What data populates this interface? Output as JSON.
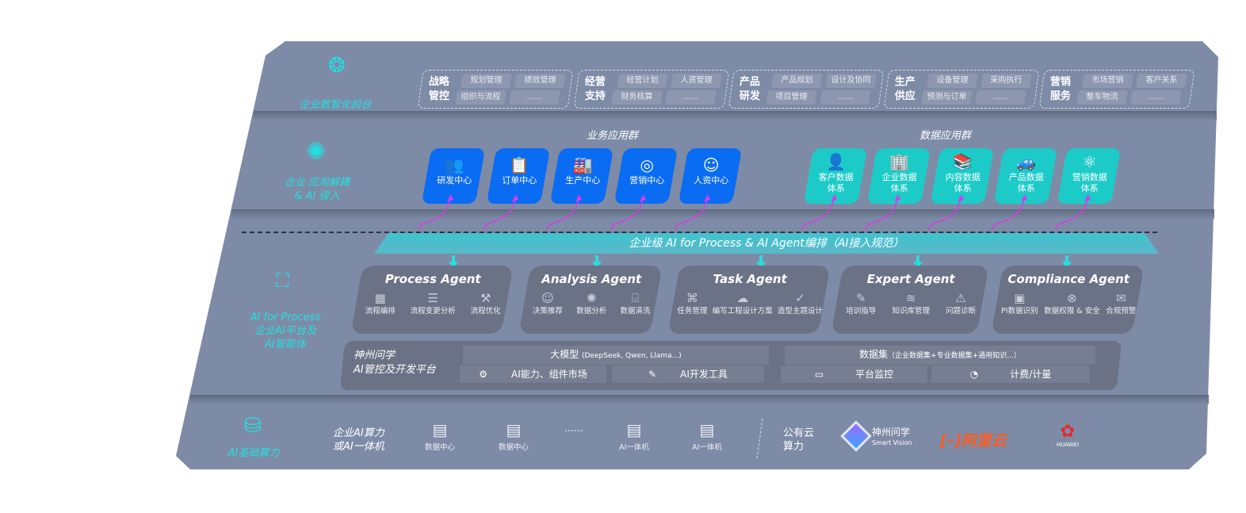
{
  "layers": {
    "front": {
      "label": "企业数智化前台",
      "icon": "brain-icon"
    },
    "apps": {
      "label_line1": "企业 应用解耦",
      "label_line2": "& AI 侵入",
      "icon": "molecule-icon"
    },
    "ai": {
      "label_line1": "AI for Process",
      "label_line2": "企业AI平台及",
      "label_line3": "AI智能体",
      "icon": "face-scan-icon"
    },
    "compute": {
      "label": "AI基础算力",
      "icon": "database-icon"
    }
  },
  "front_groups": [
    {
      "title1": "战略",
      "title2": "管控",
      "items": [
        "规划管理",
        "绩效管理",
        "组织与流程",
        "……"
      ]
    },
    {
      "title1": "经营",
      "title2": "支持",
      "items": [
        "经营计划",
        "人资管理",
        "财务核算",
        "……"
      ]
    },
    {
      "title1": "产品",
      "title2": "研发",
      "items": [
        "产品规划",
        "设计及协同",
        "项目管理",
        "……"
      ]
    },
    {
      "title1": "生产",
      "title2": "供应",
      "items": [
        "设备管理",
        "采购执行",
        "预测与订单",
        "……"
      ]
    },
    {
      "title1": "营销",
      "title2": "服务",
      "items": [
        "市场营销",
        "客户关系",
        "整车物流",
        "……"
      ]
    }
  ],
  "business_apps": {
    "title": "业务应用群",
    "items": [
      {
        "label": "研发中心",
        "icon": "team-icon"
      },
      {
        "label": "订单中心",
        "icon": "clipboard-icon"
      },
      {
        "label": "生产中心",
        "icon": "factory-icon"
      },
      {
        "label": "营销中心",
        "icon": "target-icon"
      },
      {
        "label": "人资中心",
        "icon": "people-icon"
      }
    ]
  },
  "data_apps": {
    "title": "数据应用群",
    "items": [
      {
        "line1": "客户数据",
        "line2": "体系",
        "icon": "user-icon"
      },
      {
        "line1": "企业数据",
        "line2": "体系",
        "icon": "building-icon"
      },
      {
        "line1": "内容数据",
        "line2": "体系",
        "icon": "books-icon"
      },
      {
        "line1": "产品数据",
        "line2": "体系",
        "icon": "car-icon"
      },
      {
        "line1": "营销数据",
        "line2": "体系",
        "icon": "atom-icon"
      }
    ]
  },
  "orchestration": "企业级 AI for Process & AI Agent编排（AI接入规范）",
  "agents": [
    {
      "name": "Process Agent",
      "features": [
        "流程编排",
        "流程变更分析",
        "流程优化"
      ]
    },
    {
      "name": "Analysis Agent",
      "features": [
        "决策推荐",
        "数据分析",
        "数据清洗"
      ]
    },
    {
      "name": "Task Agent",
      "features": [
        "任务管理",
        "编写工程设计方案",
        "造型主题设计"
      ]
    },
    {
      "name": "Expert Agent",
      "features": [
        "培训指导",
        "知识库管理",
        "问题诊断"
      ]
    },
    {
      "name": "Compliance Agent",
      "features": [
        "PI数据识别",
        "数据权限 & 安全",
        "合规预警"
      ]
    }
  ],
  "platform": {
    "title1": "神州问学",
    "title2": "AI管控及开发平台",
    "llm": "大模型",
    "llm_note": "(DeepSeek, Qwen, Llama...)",
    "dataset": "数据集",
    "dataset_note": "（企业数据集+专业数据集+通用知识...）",
    "market": "AI能力、组件市场",
    "devtools": "AI开发工具",
    "monitor": "平台监控",
    "billing": "计费/计量"
  },
  "compute": {
    "enterprise1": "企业AI算力",
    "enterprise2": "或AI一体机",
    "servers": [
      "数据中心",
      "数据中心",
      "AI一体机",
      "AI一体机"
    ],
    "ellipsis": "……",
    "cloud1": "公有云",
    "cloud2": "算力",
    "vendors": {
      "smartvision_cn": "神州问学",
      "smartvision_en": "Smart Vision",
      "aliyun": "阿里云",
      "huawei": "HUAWEI"
    }
  },
  "colors": {
    "panel": "#7e8ba6",
    "card_blue": "#0a6cf2",
    "card_teal": "#1ccbc8",
    "accent_cyan": "#22dfe0",
    "arrow_magenta": "#d63ce8"
  }
}
